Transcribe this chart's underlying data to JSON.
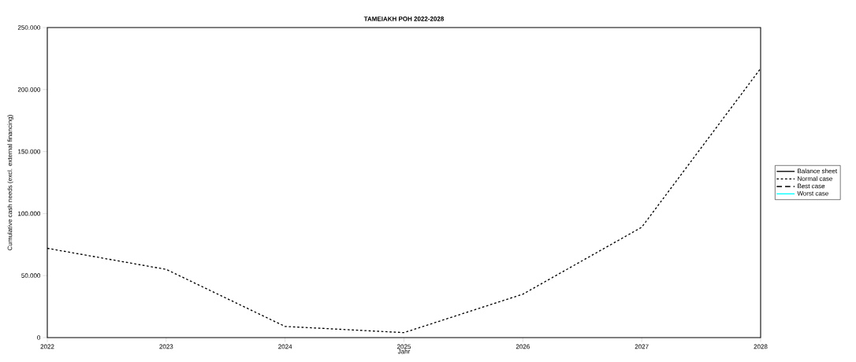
{
  "chart_data": {
    "type": "line",
    "title": "ΤΑΜΕΙΑΚΗ ΡΟΗ 2022-2028",
    "xlabel": "Jahr",
    "ylabel": "Cumulative cash needs (excl. external financing)",
    "x": [
      2022,
      2023,
      2024,
      2025,
      2026,
      2027,
      2028
    ],
    "series": [
      {
        "name": "Balance sheet",
        "color": "#000000",
        "line_style": "solid",
        "values": [
          null,
          null,
          null,
          null,
          null,
          null,
          null
        ]
      },
      {
        "name": "Normal case",
        "color": "#000000",
        "line_style": "dotted",
        "values": [
          72000,
          55000,
          9000,
          4000,
          35000,
          89000,
          217000
        ]
      },
      {
        "name": "Best case",
        "color": "#000000",
        "line_style": "dashed",
        "values": [
          null,
          null,
          null,
          null,
          null,
          null,
          null
        ]
      },
      {
        "name": "Worst case",
        "color": "#00ffff",
        "line_style": "solid",
        "values": [
          null,
          null,
          null,
          null,
          null,
          null,
          null
        ]
      }
    ],
    "xlim": [
      2022,
      2028
    ],
    "xticks": [
      2022,
      2023,
      2024,
      2025,
      2026,
      2027,
      2028
    ],
    "ylim": [
      0,
      250000
    ],
    "yticks": [
      0,
      {
        "value": 50000,
        "label": "50.000"
      },
      {
        "value": 100000,
        "label": "100.000"
      },
      {
        "value": 150000,
        "label": "150.000"
      },
      {
        "value": 200000,
        "label": "200.000"
      },
      {
        "value": 250000,
        "label": "250.000"
      }
    ],
    "grid": false,
    "legend": "right",
    "marker": "none"
  }
}
